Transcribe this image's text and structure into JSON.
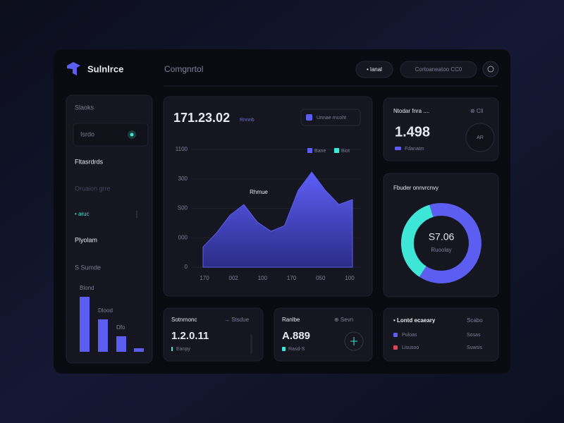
{
  "header": {
    "brand": "Sulnlrce",
    "section": "Comgnrtol",
    "pill_left": "• lanal",
    "pill_right": "Cortoaneatoo  CC0"
  },
  "sidebar": {
    "items": [
      "Slaoks",
      "Isrdo",
      "Fltasrdrds",
      "Oruaion grre",
      "• aruc",
      "Plyolam",
      "S Sumde"
    ],
    "bars": {
      "labels": [
        "Blond",
        "Dlood",
        "Dfo",
        null
      ],
      "values": [
        78,
        46,
        22,
        5
      ],
      "color": "#5b5ef0"
    }
  },
  "main_chart": {
    "type": "area",
    "title": "171.23.02",
    "subtitle": "Rnnnb",
    "button": "Unnae rncoht",
    "annotation": "Rhmue",
    "legend": [
      {
        "name": "Bane",
        "color": "#5b5ef0"
      },
      {
        "name": "Biot",
        "color": "#3ee6d8"
      }
    ],
    "categories": [
      "170",
      "002",
      "100",
      "170",
      "050",
      "100"
    ],
    "values": [
      0.69,
      1.17,
      1.77,
      2.13,
      1.53,
      1.22,
      1.41,
      2.61,
      3.23,
      2.61,
      2.13,
      2.3
    ],
    "color": "#5b5ef0",
    "ylim": [
      0,
      4
    ],
    "yticks": [
      0,
      {
        "value": 1,
        "label": "000"
      },
      {
        "value": 2,
        "label": "S00"
      },
      {
        "value": 3,
        "label": "300"
      },
      {
        "value": 4,
        "label": "1100"
      }
    ],
    "grid": true
  },
  "stat_card": {
    "title": "Ntodar fnra ....",
    "tag": "⊗ ClI",
    "value": "1.498",
    "note": "Fdanatm",
    "icon": "AR"
  },
  "donut": {
    "type": "pie",
    "title": "Fbuder onnvrcnvy",
    "center_value": "S7.06",
    "center_label": "Ruoolay",
    "values": [
      64,
      36
    ],
    "colors": [
      "#5b5ef0",
      "#3ee6d8"
    ]
  },
  "bottom_cards": [
    {
      "title": "Sotnrnonc",
      "tag": "→ Stsdue",
      "value": "1.2.0.11",
      "note": "Eanpy"
    },
    {
      "title": "Ranlbe",
      "tag": "⊕ Sevn",
      "value": "A.889",
      "note": "Rasd-S"
    }
  ],
  "list_card": {
    "title": "• Lontd ecaeary",
    "tag": "Scabo",
    "rows": [
      {
        "name": "Puloas",
        "value": "Sosas",
        "color": "#5b5ef0"
      },
      {
        "name": "Lisusoo",
        "value": "Suwsis",
        "color": "#e0455a"
      }
    ]
  }
}
